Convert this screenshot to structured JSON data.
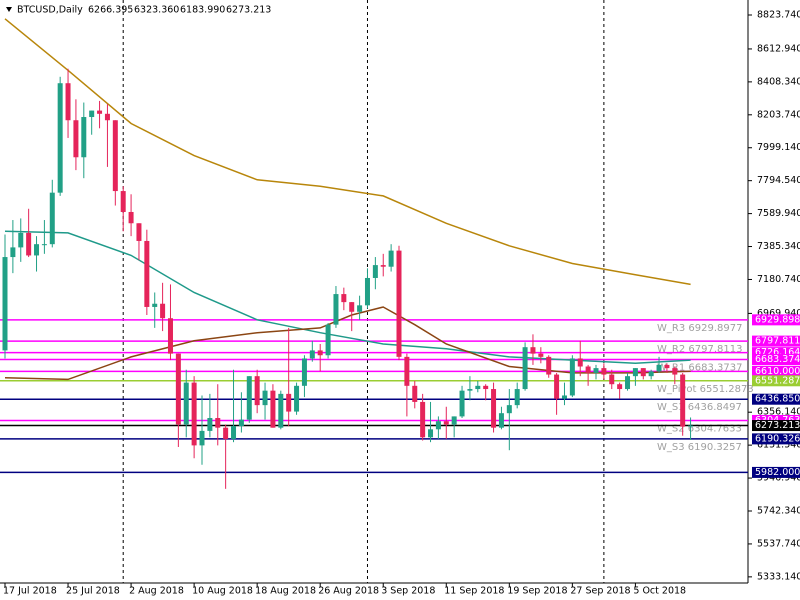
{
  "chart_data": {
    "type": "candlestick",
    "symbol": "BTCUSD,Daily",
    "ohlc": [
      6266.395,
      {
        "value": 6323.36,
        "label": "6323.360"
      },
      {
        "value": 6183.99,
        "label": "6183.990"
      },
      6273.213
    ],
    "up_color": "#21a086",
    "down_color": "#e5245a",
    "categories": [
      "17 Jul 2018",
      null,
      null,
      null,
      null,
      null,
      null,
      null,
      "25 Jul 2018",
      null,
      null,
      null,
      null,
      null,
      null,
      null,
      "2 Aug 2018",
      null,
      null,
      null,
      null,
      null,
      null,
      null,
      "10 Aug 2018",
      null,
      null,
      null,
      null,
      null,
      null,
      null,
      "18 Aug 2018",
      null,
      null,
      null,
      null,
      null,
      null,
      null,
      "26 Aug 2018",
      null,
      null,
      null,
      null,
      null,
      null,
      null,
      "3 Sep 2018",
      null,
      null,
      null,
      null,
      null,
      null,
      null,
      "11 Sep 2018",
      null,
      null,
      null,
      null,
      null,
      null,
      null,
      "19 Sep 2018",
      null,
      null,
      null,
      null,
      null,
      null,
      null,
      "27 Sep 2018",
      null,
      null,
      null,
      null,
      null,
      null,
      null,
      "5 Oct 2018",
      null,
      null,
      null,
      null,
      null,
      null,
      null
    ],
    "open": [
      6740,
      7320,
      7380,
      7470,
      7330,
      7400,
      7400,
      7720,
      8400,
      8170,
      7940,
      8190,
      8230,
      8210,
      8170,
      7730,
      7600,
      7530,
      7420,
      7010,
      7030,
      6940,
      6720,
      6280,
      6540,
      6150,
      6240,
      6320,
      6260,
      6190,
      6270,
      6310,
      6580,
      6400,
      6490,
      6260,
      6470,
      6360,
      6520,
      6690,
      6740,
      6710,
      6900,
      7090,
      7040,
      6980,
      7020,
      7190,
      7270,
      7260,
      7360,
      6700,
      6520,
      6420,
      6200,
      6250,
      6300,
      6280,
      6330,
      6490,
      6500,
      6520,
      6500,
      6260,
      6350,
      6400,
      6500,
      6760,
      6720,
      6700,
      6590,
      6440,
      6460,
      6690,
      6640,
      6600,
      6630,
      6590,
      6530,
      6500,
      6580,
      6630,
      6580,
      6610,
      6650,
      6630,
      6590,
      6266.395
    ],
    "high": [
      7460,
      7550,
      7560,
      7620,
      7450,
      7550,
      7800,
      8440,
      8490,
      8300,
      8280,
      8230,
      8290,
      8270,
      8170,
      7760,
      7710,
      7530,
      7490,
      7100,
      7160,
      7150,
      6720,
      6620,
      6580,
      6460,
      6470,
      6530,
      6280,
      6620,
      6480,
      6580,
      6620,
      6540,
      6530,
      6490,
      6880,
      6540,
      6710,
      6800,
      6780,
      6910,
      7140,
      7130,
      7040,
      7080,
      7250,
      7320,
      7340,
      7400,
      7390,
      6720,
      6550,
      6470,
      6420,
      6330,
      6390,
      6330,
      6520,
      6580,
      6550,
      6530,
      6540,
      6390,
      6500,
      6540,
      6790,
      6840,
      6760,
      6710,
      6600,
      6540,
      6710,
      6800,
      6650,
      6650,
      6660,
      6620,
      6540,
      6600,
      6630,
      6630,
      6620,
      6700,
      6660,
      6640,
      6600,
      6323.36
    ],
    "low": [
      6690,
      7220,
      7290,
      7320,
      7230,
      7340,
      7380,
      7700,
      8060,
      7860,
      7810,
      8080,
      8120,
      7880,
      7640,
      7480,
      7450,
      7300,
      6960,
      6880,
      6860,
      6680,
      6140,
      6200,
      6070,
      6030,
      6200,
      6150,
      5880,
      6170,
      6230,
      6290,
      6350,
      6310,
      6260,
      6250,
      6270,
      6340,
      6450,
      6670,
      6610,
      6690,
      6880,
      6990,
      6860,
      6930,
      7000,
      7120,
      7200,
      7230,
      6680,
      6330,
      6380,
      6180,
      6170,
      6190,
      6190,
      6200,
      6320,
      6430,
      6480,
      6430,
      6230,
      6250,
      6120,
      6380,
      6490,
      6650,
      6660,
      6570,
      6340,
      6400,
      6450,
      6580,
      6520,
      6560,
      6560,
      6500,
      6440,
      6490,
      6520,
      6560,
      6560,
      6600,
      6600,
      6530,
      6210,
      6183.99
    ],
    "close": [
      7320,
      7380,
      7470,
      7330,
      7400,
      7400,
      7720,
      8400,
      8170,
      7940,
      8190,
      8230,
      8210,
      8170,
      7730,
      7600,
      7530,
      7420,
      7010,
      7030,
      6940,
      6720,
      6280,
      6540,
      6150,
      6240,
      6320,
      6260,
      6190,
      6270,
      6310,
      6580,
      6400,
      6490,
      6260,
      6470,
      6360,
      6520,
      6690,
      6740,
      6710,
      6900,
      7090,
      7040,
      6980,
      7020,
      7190,
      7270,
      7260,
      7360,
      6700,
      6520,
      6420,
      6200,
      6250,
      6300,
      6280,
      6330,
      6490,
      6500,
      6520,
      6500,
      6260,
      6350,
      6400,
      6500,
      6760,
      6720,
      6700,
      6590,
      6440,
      6460,
      6690,
      6640,
      6600,
      6630,
      6590,
      6530,
      6500,
      6580,
      6630,
      6580,
      6610,
      6650,
      6630,
      6590,
      6266.395,
      6273.213
    ],
    "ma": [
      {
        "color": "#b8860b",
        "x": [
          "17 Jul 2018",
          "25 Jul 2018",
          "2 Aug 2018",
          "10 Aug 2018",
          "18 Aug 2018",
          "26 Aug 2018",
          "3 Sep 2018",
          "11 Sep 2018",
          "19 Sep 2018",
          "27 Sep 2018",
          "5 Oct 2018",
          "12 Oct 2018"
        ],
        "values": [
          8800,
          8480,
          8150,
          7950,
          7800,
          7760,
          7700,
          7530,
          7390,
          7280,
          7210,
          7150
        ]
      },
      {
        "color": "#1f9a8a",
        "x": [
          "17 Jul 2018",
          "25 Jul 2018",
          "2 Aug 2018",
          "10 Aug 2018",
          "18 Aug 2018",
          "26 Aug 2018",
          "3 Sep 2018",
          "11 Sep 2018",
          "19 Sep 2018",
          "27 Sep 2018",
          "5 Oct 2018",
          "12 Oct 2018"
        ],
        "values": [
          7480,
          7470,
          7330,
          7100,
          6930,
          6850,
          6780,
          6750,
          6700,
          6680,
          6660,
          6680
        ]
      },
      {
        "color": "#8b4513",
        "x": [
          "17 Jul 2018",
          "25 Jul 2018",
          "2 Aug 2018",
          "10 Aug 2018",
          "18 Aug 2018",
          "26 Aug 2018",
          "30 Aug 2018",
          "3 Sep 2018",
          "7 Sep 2018",
          "11 Sep 2018",
          "19 Sep 2018",
          "27 Sep 2018",
          "5 Oct 2018",
          "12 Oct 2018"
        ],
        "values": [
          6570,
          6560,
          6700,
          6800,
          6850,
          6880,
          6960,
          7010,
          6900,
          6780,
          6640,
          6600,
          6600,
          6610
        ]
      }
    ],
    "separators": [
      "1 Aug 2018",
      "1 Sep 2018",
      "1 Oct 2018"
    ],
    "levels": [
      {
        "value": 6929.898,
        "color": "#ff00ff",
        "text": "W_R3 6929.8977"
      },
      {
        "value": 6797.811,
        "color": "#ff00ff",
        "text": "W_R2 6797.8113"
      },
      {
        "value": 6726.164,
        "color": "#ff00ff"
      },
      {
        "value": 6683.374,
        "color": "#ff00ff",
        "text": "W_R1 6683.3737"
      },
      {
        "value": 6610,
        "label": "6610.000",
        "color": "#ff00ff"
      },
      {
        "value": 6551.287,
        "color": "#9acd32",
        "text": "W_Pivot 6551.2873"
      },
      {
        "value": 6436.85,
        "label": "6436.850",
        "color": "#000080",
        "text": "W_S1 6436.8497"
      },
      {
        "value": 6304.763,
        "color": "#ff00ff",
        "text": "W_S2 6304.7633"
      },
      {
        "value": 6273.213,
        "color": "#000000"
      },
      {
        "value": 6190.326,
        "color": "#000080",
        "text": "W_S3 6190.3257"
      },
      {
        "value": 5982,
        "label": "5982.000",
        "color": "#000080"
      }
    ],
    "ylim": [
      5295,
      8917
    ],
    "yticks": [
      {
        "value": 8823.74,
        "label": "8823.740"
      },
      {
        "value": 8612.94,
        "label": "8612.940"
      },
      {
        "value": 8408.34,
        "label": "8408.340"
      },
      {
        "value": 8203.74,
        "label": "8203.740"
      },
      {
        "value": 7999.14,
        "label": "7999.140"
      },
      {
        "value": 7794.54,
        "label": "7794.540"
      },
      {
        "value": 7589.94,
        "label": "7589.940"
      },
      {
        "value": 7385.34,
        "label": "7385.340"
      },
      {
        "value": 7180.74,
        "label": "7180.740"
      },
      {
        "value": 6969.94,
        "label": "6969.940"
      },
      {
        "value": 6356.14,
        "label": "6356.140"
      },
      {
        "value": 6151.54,
        "label": "6151.540"
      },
      {
        "value": 5946.94,
        "label": "5946.940"
      },
      {
        "value": 5742.34,
        "label": "5742.340"
      },
      {
        "value": 5537.74,
        "label": "5537.740"
      },
      {
        "value": 5333.14,
        "label": "5333.140"
      }
    ]
  }
}
